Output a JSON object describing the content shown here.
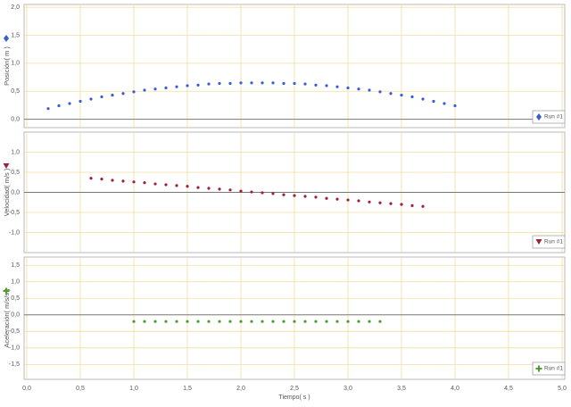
{
  "chart_data": [
    {
      "type": "scatter",
      "y_label": "Posición( m )",
      "x": [
        0.2,
        0.3,
        0.4,
        0.5,
        0.6,
        0.7,
        0.8,
        0.9,
        1.0,
        1.1,
        1.2,
        1.3,
        1.4,
        1.5,
        1.6,
        1.7,
        1.8,
        1.9,
        2.0,
        2.1,
        2.2,
        2.3,
        2.4,
        2.5,
        2.6,
        2.7,
        2.8,
        2.9,
        3.0,
        3.1,
        3.2,
        3.3,
        3.4,
        3.5,
        3.6,
        3.7,
        3.8,
        3.9,
        4.0
      ],
      "series": [
        {
          "name": "Run #1",
          "color": "#3a5fcd",
          "values": [
            0.19,
            0.24,
            0.28,
            0.32,
            0.36,
            0.4,
            0.43,
            0.46,
            0.49,
            0.52,
            0.54,
            0.56,
            0.58,
            0.6,
            0.61,
            0.63,
            0.64,
            0.64,
            0.65,
            0.65,
            0.65,
            0.65,
            0.64,
            0.64,
            0.63,
            0.61,
            0.6,
            0.58,
            0.56,
            0.54,
            0.52,
            0.49,
            0.46,
            0.43,
            0.4,
            0.36,
            0.32,
            0.28,
            0.24
          ]
        }
      ],
      "ylim": [
        -0.15,
        2.05
      ],
      "yticks": [
        {
          "value": 0,
          "label": "0,0"
        },
        {
          "value": 0.5,
          "label": "0,5"
        },
        {
          "value": 1,
          "label": "1,0"
        },
        {
          "value": 1.5,
          "label": "1,5"
        },
        {
          "value": 2,
          "label": "2,0"
        }
      ],
      "grid": true
    },
    {
      "type": "scatter",
      "y_label": "Velocidad( m/s )",
      "x": [
        0.6,
        0.7,
        0.8,
        0.9,
        1.0,
        1.1,
        1.2,
        1.3,
        1.4,
        1.5,
        1.6,
        1.7,
        1.8,
        1.9,
        2.0,
        2.1,
        2.2,
        2.3,
        2.4,
        2.5,
        2.6,
        2.7,
        2.8,
        2.9,
        3.0,
        3.1,
        3.2,
        3.3,
        3.4,
        3.5,
        3.6,
        3.7
      ],
      "series": [
        {
          "name": "Run #1",
          "color": "#a0203a",
          "values": [
            0.35,
            0.33,
            0.3,
            0.28,
            0.26,
            0.24,
            0.21,
            0.19,
            0.17,
            0.15,
            0.12,
            0.1,
            0.08,
            0.06,
            0.03,
            0.01,
            -0.01,
            -0.03,
            -0.06,
            -0.08,
            -0.1,
            -0.12,
            -0.15,
            -0.17,
            -0.19,
            -0.21,
            -0.24,
            -0.26,
            -0.28,
            -0.3,
            -0.33,
            -0.35
          ]
        }
      ],
      "ylim": [
        -1.5,
        1.5
      ],
      "yticks": [
        {
          "value": -1,
          "label": "-1,0"
        },
        {
          "value": -0.5,
          "label": "-0,5"
        },
        {
          "value": 0,
          "label": "0,0"
        },
        {
          "value": 0.5,
          "label": "0,5"
        },
        {
          "value": 1,
          "label": "1,0"
        }
      ],
      "grid": true
    },
    {
      "type": "scatter",
      "y_label": "Aceleración( m/s/s )",
      "x_label": "Tiempo( s )",
      "x": [
        1.0,
        1.1,
        1.2,
        1.3,
        1.4,
        1.5,
        1.6,
        1.7,
        1.8,
        1.9,
        2.0,
        2.1,
        2.2,
        2.3,
        2.4,
        2.5,
        2.6,
        2.7,
        2.8,
        2.9,
        3.0,
        3.1,
        3.2,
        3.3
      ],
      "series": [
        {
          "name": "Run #1",
          "color": "#4aa02a",
          "values": [
            -0.2,
            -0.2,
            -0.2,
            -0.2,
            -0.2,
            -0.2,
            -0.2,
            -0.2,
            -0.2,
            -0.2,
            -0.2,
            -0.2,
            -0.2,
            -0.2,
            -0.2,
            -0.2,
            -0.2,
            -0.2,
            -0.2,
            -0.2,
            -0.2,
            -0.2,
            -0.2,
            -0.2
          ]
        }
      ],
      "ylim": [
        -1.95,
        1.75
      ],
      "yticks": [
        {
          "value": -1.5,
          "label": "-1,5"
        },
        {
          "value": -1,
          "label": "-1,0"
        },
        {
          "value": -0.5,
          "label": "-0,5"
        },
        {
          "value": 0,
          "label": "0,0"
        },
        {
          "value": 0.5,
          "label": "0,5"
        },
        {
          "value": 1,
          "label": "1,0"
        },
        {
          "value": 1.5,
          "label": "1,5"
        }
      ],
      "xlim": [
        0,
        5
      ],
      "xticks": [
        {
          "value": 0,
          "label": "0,0"
        },
        {
          "value": 0.5,
          "label": "0,5"
        },
        {
          "value": 1,
          "label": "1,0"
        },
        {
          "value": 1.5,
          "label": "1,5"
        },
        {
          "value": 2,
          "label": "2,0"
        },
        {
          "value": 2.5,
          "label": "2,5"
        },
        {
          "value": 3,
          "label": "3,0"
        },
        {
          "value": 3.5,
          "label": "3,5"
        },
        {
          "value": 4,
          "label": "4,0"
        },
        {
          "value": 4.5,
          "label": "4,5"
        },
        {
          "value": 5,
          "label": "5,0"
        }
      ],
      "grid": true
    }
  ]
}
